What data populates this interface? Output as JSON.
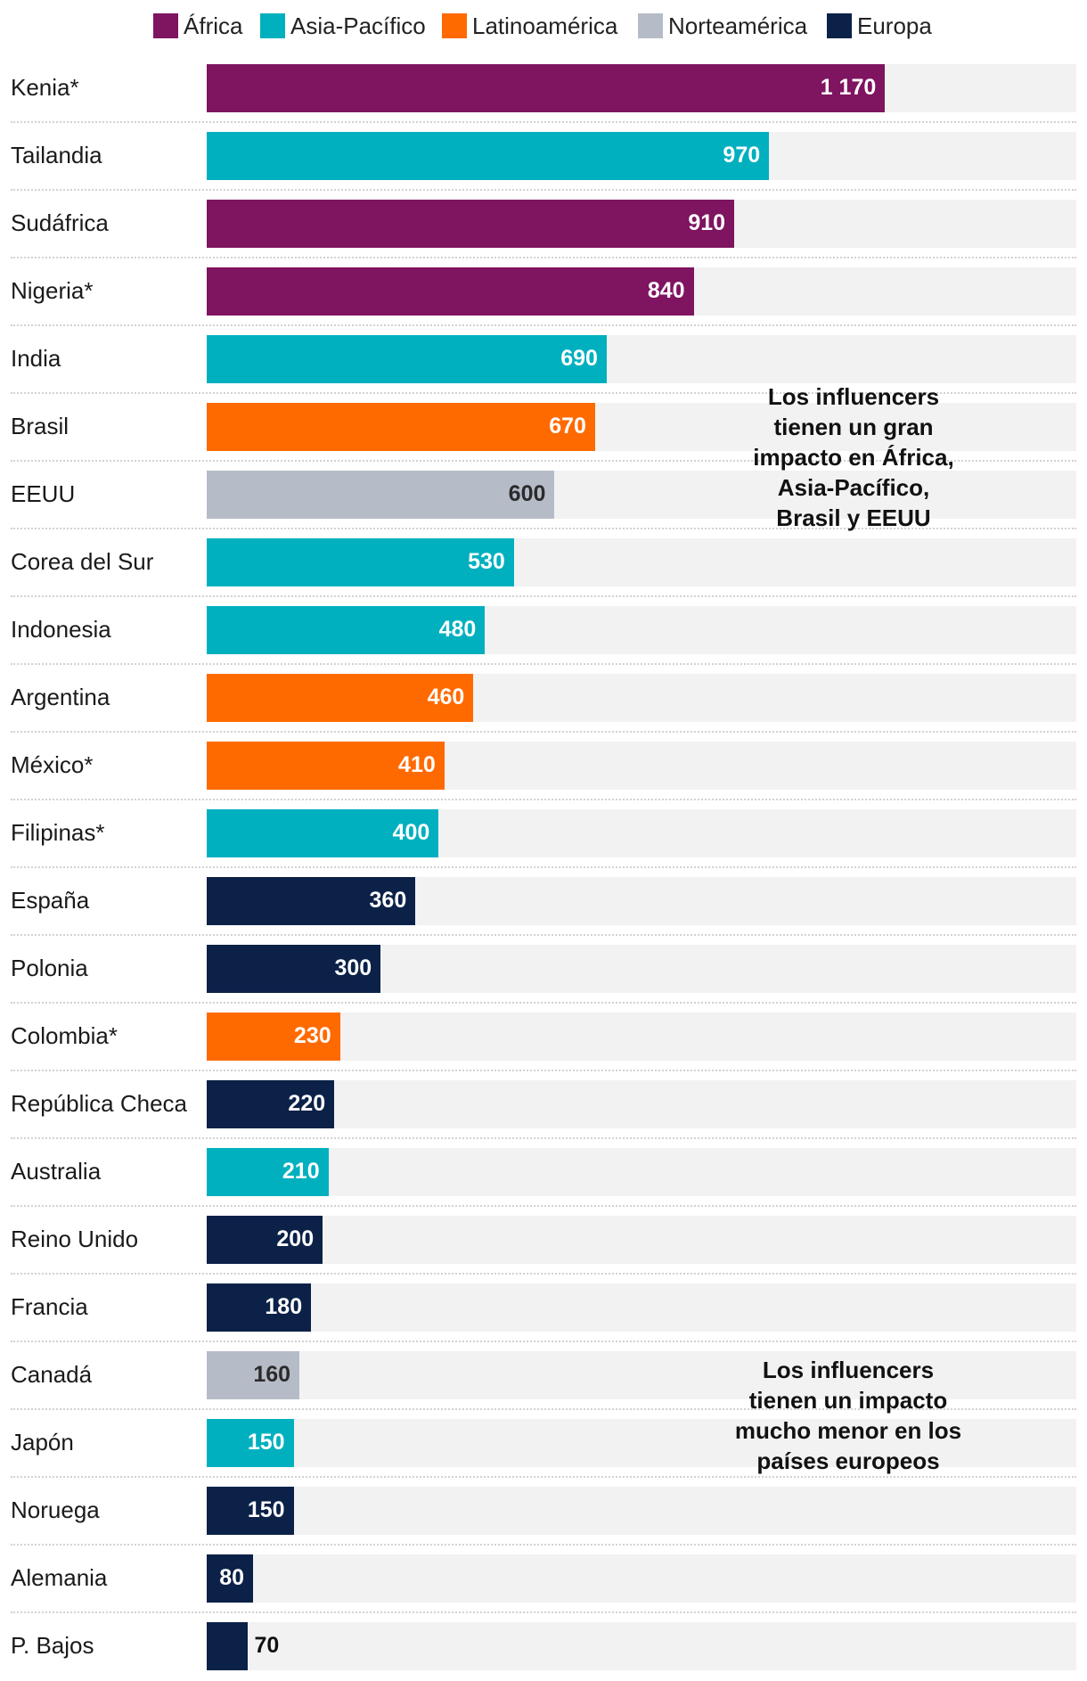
{
  "chart_data": {
    "type": "bar",
    "orientation": "horizontal",
    "categories": [
      "Kenia*",
      "Tailandia",
      "Sudáfrica",
      "Nigeria*",
      "India",
      "Brasil",
      "EEUU",
      "Corea del Sur",
      "Indonesia",
      "Argentina",
      "México*",
      "Filipinas*",
      "España",
      "Polonia",
      "Colombia*",
      "República Checa",
      "Australia",
      "Reino Unido",
      "Francia",
      "Canadá",
      "Japón",
      "Noruega",
      "Alemania",
      "P. Bajos"
    ],
    "values": [
      1170,
      970,
      910,
      840,
      690,
      670,
      600,
      530,
      480,
      460,
      410,
      400,
      360,
      300,
      230,
      220,
      210,
      200,
      180,
      160,
      150,
      150,
      80,
      70
    ],
    "value_labels": [
      "1 170",
      "970",
      "910",
      "840",
      "690",
      "670",
      "600",
      "530",
      "480",
      "460",
      "410",
      "400",
      "360",
      "300",
      "230",
      "220",
      "210",
      "200",
      "180",
      "160",
      "150",
      "150",
      "80",
      "70"
    ],
    "regions": [
      "África",
      "Asia-Pacífico",
      "África",
      "África",
      "Asia-Pacífico",
      "Latinoamérica",
      "Norteamérica",
      "Asia-Pacífico",
      "Asia-Pacífico",
      "Latinoamérica",
      "Latinoamérica",
      "Asia-Pacífico",
      "Europa",
      "Europa",
      "Latinoamérica",
      "Europa",
      "Asia-Pacífico",
      "Europa",
      "Europa",
      "Norteamérica",
      "Asia-Pacífico",
      "Europa",
      "Europa",
      "Europa"
    ],
    "xlim": [
      0,
      1500
    ],
    "grid": false,
    "legend": {
      "placement": "top",
      "entries": [
        {
          "name": "África",
          "color": "#7f1460"
        },
        {
          "name": "Asia-Pacífico",
          "color": "#00b0bf"
        },
        {
          "name": "Latinoamérica",
          "color": "#ff6a00"
        },
        {
          "name": "Norteamérica",
          "color": "#b5bcc8"
        },
        {
          "name": "Europa",
          "color": "#0b2148"
        }
      ]
    },
    "annotations": [
      {
        "text": [
          "Los influencers",
          "tienen un gran",
          "impacto en África,",
          "Asia-Pacífico,",
          "Brasil y EEUU"
        ]
      },
      {
        "text": [
          "Los influencers",
          "tienen un impacto",
          "mucho menor en los",
          "países europeos"
        ]
      }
    ]
  }
}
